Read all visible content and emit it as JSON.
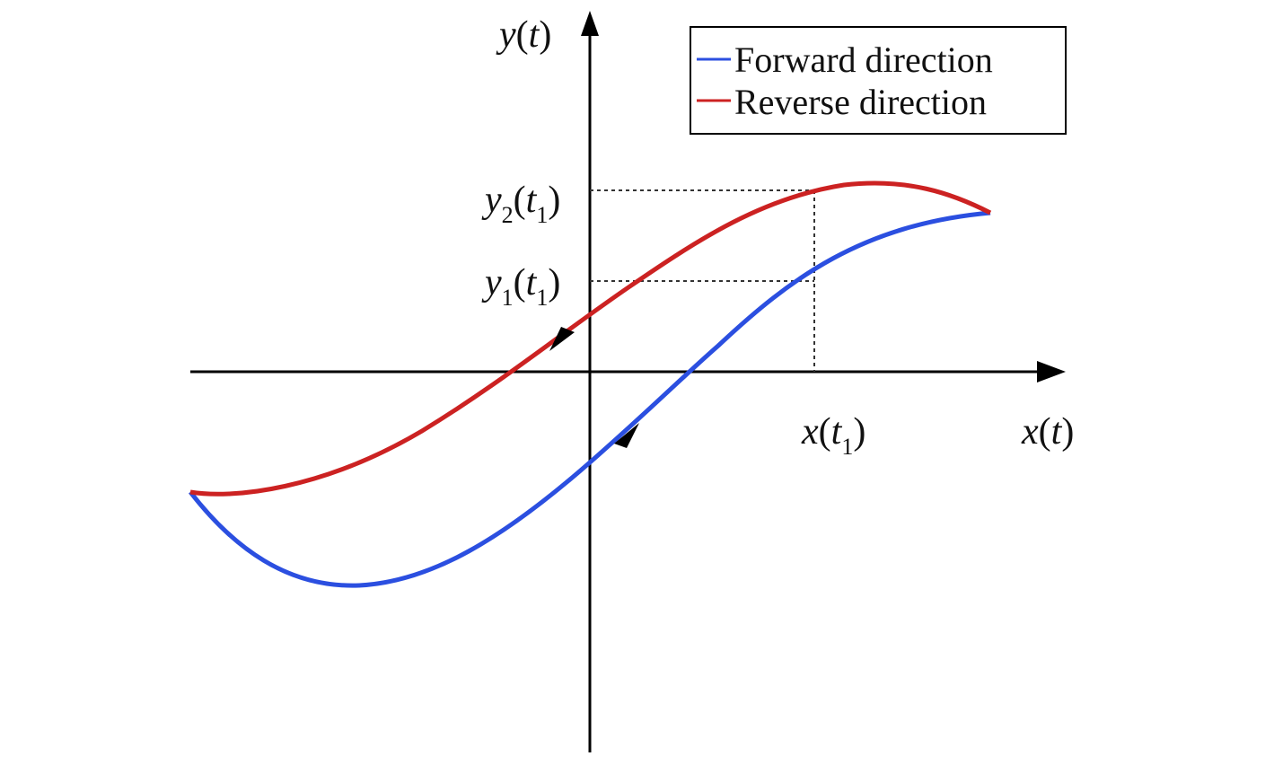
{
  "labels": {
    "y_axis": [
      "y",
      "(",
      "t",
      ")"
    ],
    "x_axis": [
      "x",
      "(",
      "t",
      ")"
    ],
    "x_t1": [
      "x",
      "(",
      "t",
      "1",
      ")"
    ],
    "y2_t1": [
      "y",
      "2",
      "(",
      "t",
      "1",
      ")"
    ],
    "y1_t1": [
      "y",
      "1",
      "(",
      "t",
      "1",
      ")"
    ]
  },
  "legend": {
    "items": [
      "Forward direction",
      "Reverse direction"
    ]
  }
}
